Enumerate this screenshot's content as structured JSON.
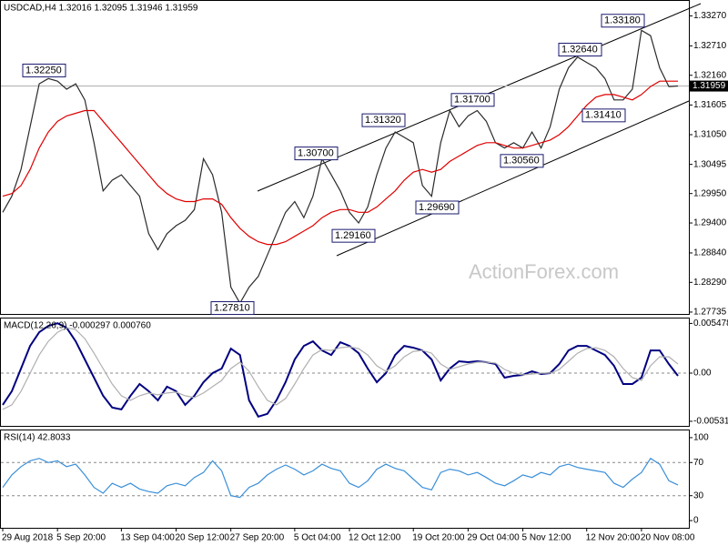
{
  "chart_data": [
    {
      "type": "line",
      "title": "USDCAD,H4  1.32016 1.32095 1.31946 1.31959",
      "watermark": "ActionForex.com",
      "ylim": [
        1.277,
        1.3355
      ],
      "yticks": [
        {
          "value": 1.3327,
          "label": "1.33270"
        },
        {
          "value": 1.3271,
          "label": "1.32710"
        },
        {
          "value": 1.3216,
          "label": "1.32160"
        },
        1.31605,
        {
          "value": 1.3105,
          "label": "1.31050"
        },
        1.30495,
        {
          "value": 1.2995,
          "label": "1.29950"
        },
        {
          "value": 1.294,
          "label": "1.29400"
        },
        {
          "value": 1.2884,
          "label": "1.28840"
        },
        {
          "value": 1.2829,
          "label": "1.28290"
        },
        1.27735
      ],
      "last_price": {
        "value": 1.31959,
        "label": "1.31959"
      },
      "annotations": [
        {
          "value": 1.3225,
          "label": "1.32250"
        },
        {
          "value": 1.2781,
          "label": "1.27810"
        },
        {
          "value": 1.307,
          "label": "1.30700"
        },
        {
          "value": 1.2916,
          "label": "1.29160"
        },
        {
          "value": 1.3132,
          "label": "1.31320"
        },
        {
          "value": 1.2969,
          "label": "1.29690"
        },
        {
          "value": 1.317,
          "label": "1.31700"
        },
        {
          "value": 1.3056,
          "label": "1.30560"
        },
        {
          "value": 1.3264,
          "label": "1.32640"
        },
        {
          "value": 1.3141,
          "label": "1.31410"
        },
        {
          "value": 1.3318,
          "label": "1.33180"
        }
      ],
      "series": [
        {
          "color": "#2b2b2b",
          "values": [
            1.296,
            1.299,
            1.304,
            1.312,
            1.32,
            1.321,
            1.3205,
            1.319,
            1.32,
            1.317,
            1.309,
            1.3,
            1.302,
            1.303,
            1.301,
            1.299,
            1.292,
            1.289,
            1.292,
            1.2935,
            1.2945,
            1.2965,
            1.306,
            1.303,
            1.296,
            1.282,
            1.279,
            1.282,
            1.284,
            1.288,
            1.292,
            1.296,
            1.298,
            1.295,
            1.299,
            1.306,
            1.303,
            1.3,
            1.296,
            1.294,
            1.297,
            1.303,
            1.308,
            1.311,
            1.31,
            1.309,
            1.301,
            1.299,
            1.309,
            1.315,
            1.312,
            1.314,
            1.315,
            1.313,
            1.309,
            1.308,
            1.309,
            1.308,
            1.311,
            1.308,
            1.312,
            1.319,
            1.323,
            1.325,
            1.324,
            1.323,
            1.321,
            1.317,
            1.317,
            1.319,
            1.33,
            1.329,
            1.323,
            1.3195,
            1.3196
          ]
        },
        {
          "color": "#e00000",
          "values": [
            1.299,
            1.2995,
            1.301,
            1.304,
            1.308,
            1.311,
            1.313,
            1.314,
            1.3145,
            1.315,
            1.315,
            1.313,
            1.311,
            1.309,
            1.307,
            1.305,
            1.303,
            1.301,
            1.2995,
            1.2985,
            1.298,
            1.298,
            1.2985,
            1.2985,
            1.2975,
            1.295,
            1.293,
            1.2915,
            1.2905,
            1.29,
            1.29,
            1.2905,
            1.2915,
            1.2925,
            1.2935,
            1.295,
            1.296,
            1.2965,
            1.2965,
            1.296,
            1.296,
            1.297,
            1.2985,
            1.3,
            1.302,
            1.3035,
            1.304,
            1.3035,
            1.304,
            1.3055,
            1.3065,
            1.3075,
            1.3085,
            1.309,
            1.309,
            1.3085,
            1.308,
            1.308,
            1.3085,
            1.309,
            1.3095,
            1.3105,
            1.312,
            1.314,
            1.316,
            1.3175,
            1.318,
            1.318,
            1.3175,
            1.317,
            1.318,
            1.3195,
            1.3205,
            1.3205,
            1.3205
          ]
        }
      ]
    },
    {
      "type": "line",
      "title": "MACD(12,26,9) -0.000297 0.000760",
      "ylim": [
        -0.00582,
        0.00602
      ],
      "yticks": [
        0.005478,
        {
          "value": 0,
          "label": "0.00"
        },
        -0.005314
      ],
      "levels": [
        0
      ],
      "series": [
        {
          "color": "#000080",
          "values": [
            -0.0035,
            -0.002,
            0.0005,
            0.003,
            0.0045,
            0.0052,
            0.0055,
            0.005,
            0.0035,
            0.0015,
            -0.0005,
            -0.0025,
            -0.0038,
            -0.004,
            -0.0025,
            -0.0012,
            -0.002,
            -0.003,
            -0.0015,
            -0.002,
            -0.0035,
            -0.0025,
            -0.001,
            0,
            0.0005,
            0.0027,
            0.002,
            -0.003,
            -0.0048,
            -0.0045,
            -0.003,
            -0.001,
            0.0015,
            0.003,
            0.0035,
            0.0025,
            0.002,
            0.0034,
            0.003,
            0.0022,
            0.0005,
            -0.001,
            0,
            0.002,
            0.003,
            0.0028,
            0.0025,
            0.0015,
            -0.0008,
            0.0005,
            0.0013,
            0.0012,
            0.0013,
            0.0012,
            0.001,
            -0.0005,
            -0.0003,
            -0.0002,
            0.0002,
            -0.0001,
            0,
            0.001,
            0.0025,
            0.003,
            0.003,
            0.0025,
            0.002,
            0.0008,
            -0.0012,
            -0.0012,
            -0.0005,
            0.0025,
            0.0025,
            0.001,
            -0.0003
          ]
        },
        {
          "color": "#b0b0b0",
          "values": [
            -0.004,
            -0.0035,
            -0.002,
            0,
            0.002,
            0.0035,
            0.0045,
            0.005,
            0.0048,
            0.0038,
            0.0022,
            0.0005,
            -0.0012,
            -0.0025,
            -0.003,
            -0.0025,
            -0.0022,
            -0.0024,
            -0.0022,
            -0.0021,
            -0.0025,
            -0.0027,
            -0.0022,
            -0.0015,
            -0.0008,
            0.0005,
            0.0012,
            0.0002,
            -0.0015,
            -0.003,
            -0.0035,
            -0.0028,
            -0.0012,
            0.0005,
            0.002,
            0.0026,
            0.0025,
            0.0028,
            0.0029,
            0.0027,
            0.002,
            0.0008,
            0.0002,
            0.0008,
            0.0018,
            0.0024,
            0.0025,
            0.0022,
            0.001,
            0.0004,
            0.0007,
            0.001,
            0.0012,
            0.0012,
            0.0011,
            0.0004,
            0,
            -0.0002,
            -0.0001,
            0,
            0,
            0.0004,
            0.0013,
            0.0022,
            0.0027,
            0.0028,
            0.0025,
            0.0018,
            0.0005,
            -0.0005,
            -0.0008,
            0.0008,
            0.0018,
            0.0018,
            0.001
          ]
        }
      ]
    },
    {
      "type": "line",
      "title": "RSI(14) 42.8033",
      "ylim": [
        -8.7,
        108.7
      ],
      "yticks": [
        100,
        70,
        30,
        0
      ],
      "levels": [
        70,
        30
      ],
      "categories": [
        "29 Aug 2018",
        null,
        null,
        null,
        null,
        null,
        "5 Sep 20:00",
        null,
        null,
        null,
        null,
        null,
        null,
        "13 Sep 04:00",
        null,
        null,
        null,
        null,
        null,
        "20 Sep 12:00",
        null,
        null,
        null,
        null,
        null,
        "27 Sep 20:00",
        null,
        null,
        null,
        null,
        null,
        null,
        "5 Oct 04:00",
        null,
        null,
        null,
        null,
        null,
        "12 Oct 12:00",
        null,
        null,
        null,
        null,
        null,
        null,
        "19 Oct 20:00",
        null,
        null,
        null,
        null,
        null,
        "29 Oct 04:00",
        null,
        null,
        null,
        null,
        null,
        "5 Nov 12:00",
        null,
        null,
        null,
        null,
        null,
        null,
        "12 Nov 20:00",
        null,
        null,
        null,
        null,
        null,
        "20 Nov 08:00",
        null,
        null,
        null,
        null
      ],
      "series": [
        {
          "color": "#3a8fd8",
          "values": [
            40,
            55,
            65,
            72,
            75,
            70,
            72,
            65,
            68,
            55,
            40,
            33,
            45,
            40,
            45,
            38,
            35,
            33,
            42,
            45,
            42,
            52,
            58,
            72,
            60,
            30,
            28,
            40,
            45,
            55,
            62,
            67,
            62,
            55,
            60,
            68,
            63,
            60,
            45,
            40,
            48,
            62,
            68,
            63,
            60,
            50,
            40,
            37,
            58,
            62,
            60,
            55,
            58,
            52,
            45,
            42,
            48,
            55,
            52,
            58,
            55,
            65,
            68,
            64,
            62,
            60,
            58,
            45,
            40,
            50,
            58,
            75,
            68,
            48,
            43
          ]
        }
      ]
    }
  ]
}
